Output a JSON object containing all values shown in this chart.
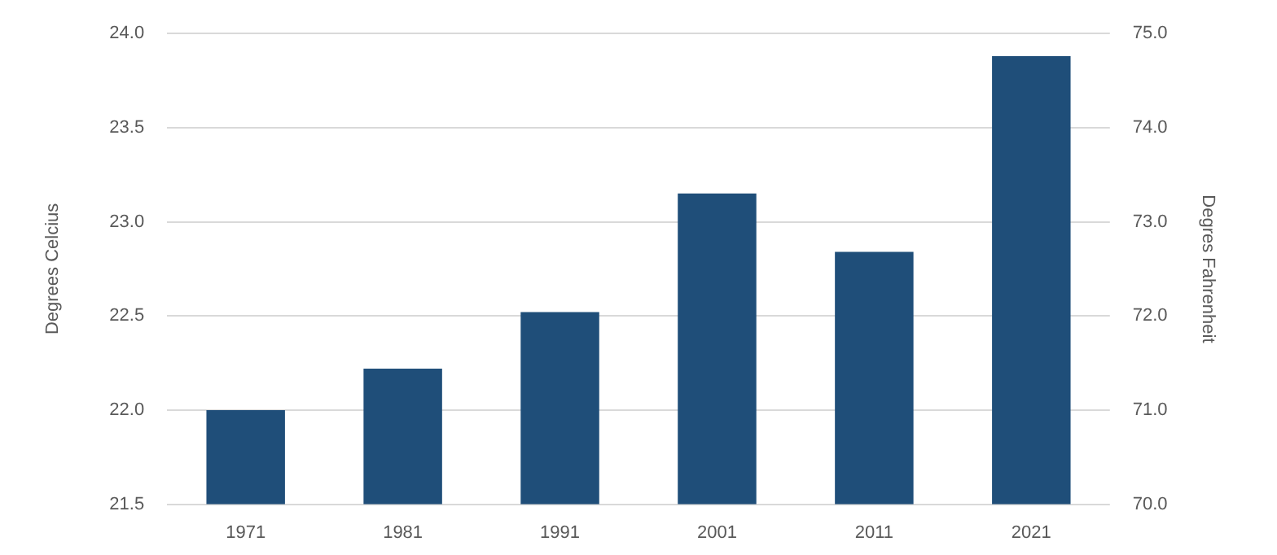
{
  "chart_data": {
    "type": "bar",
    "ylabel": "Degrees Celcius",
    "y2label": "Degres Fahrenheit",
    "categories": [
      "1971",
      "1981",
      "1991",
      "2001",
      "2011",
      "2021"
    ],
    "values": [
      22.0,
      22.22,
      22.52,
      23.15,
      22.84,
      23.88
    ],
    "color": "#1f4e79",
    "ylim": [
      21.5,
      24.0
    ],
    "yticks": [
      21.5,
      {
        "value": 22,
        "label": "22.0"
      },
      22.5,
      {
        "value": 23,
        "label": "23.0"
      },
      23.5,
      {
        "value": 24,
        "label": "24.0"
      }
    ],
    "y2lim": [
      70,
      75
    ],
    "y2ticks": [
      {
        "value": 70,
        "label": "70.0"
      },
      {
        "value": 71,
        "label": "71.0"
      },
      {
        "value": 72,
        "label": "72.0"
      },
      {
        "value": 73,
        "label": "73.0"
      },
      {
        "value": 74,
        "label": "74.0"
      },
      {
        "value": 75,
        "label": "75.0"
      }
    ],
    "grid": "y",
    "legend": false
  }
}
